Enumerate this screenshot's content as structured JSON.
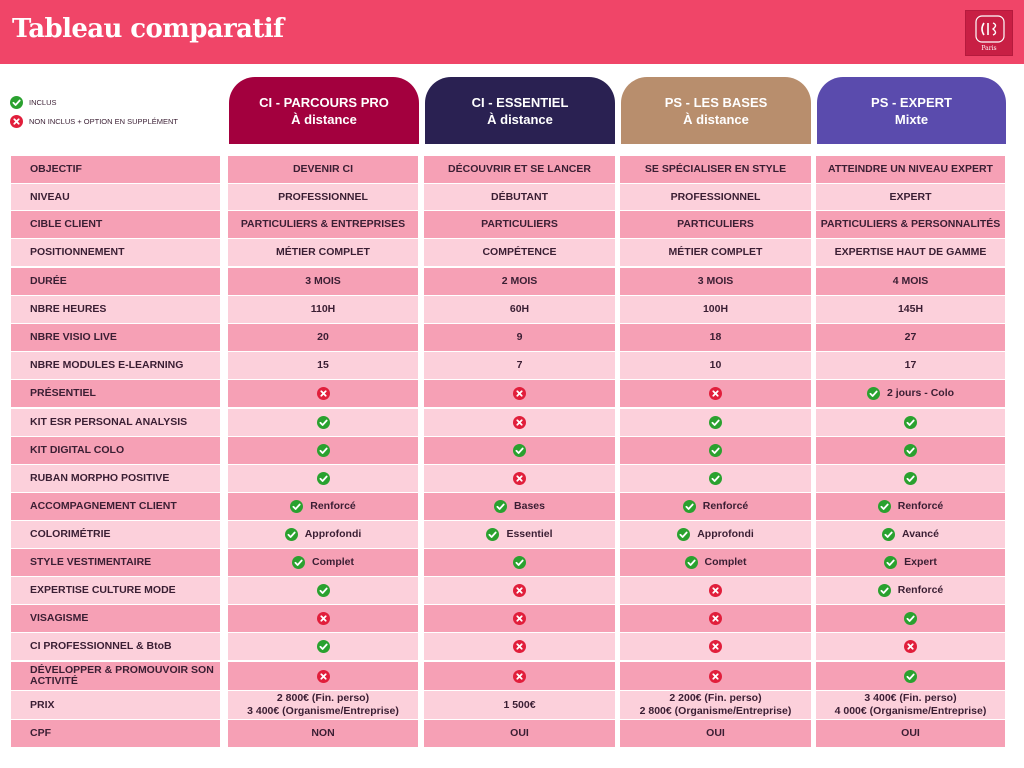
{
  "header": {
    "title": "Tableau comparatif",
    "logo_text": "Paris"
  },
  "legend": {
    "included": "INCLUS",
    "not_included": "NON INCLUS + OPTION EN SUPPLÉMENT"
  },
  "colors": {
    "header_bg": "#f04568",
    "row_dark": "#f6a0b5",
    "row_light": "#fcd0db",
    "yes": "#2aa12f",
    "no": "#e11e3b"
  },
  "columns": [
    {
      "title": "CI - PARCOURS PRO",
      "subtitle": "À distance",
      "color": "#a3003e"
    },
    {
      "title": "CI - ESSENTIEL",
      "subtitle": "À distance",
      "color": "#2a2152"
    },
    {
      "title": "PS - LES BASES",
      "subtitle": "À distance",
      "color": "#b88e6d"
    },
    {
      "title": "PS - EXPERT",
      "subtitle": "Mixte",
      "color": "#5a4bad"
    }
  ],
  "rows": [
    {
      "label": "OBJECTIF",
      "cells": [
        {
          "text": "DEVENIR CI"
        },
        {
          "text": "DÉCOUVRIR ET SE LANCER"
        },
        {
          "text": "SE SPÉCIALISER EN STYLE"
        },
        {
          "text": "ATTEINDRE UN NIVEAU EXPERT"
        }
      ]
    },
    {
      "label": "NIVEAU",
      "cells": [
        {
          "text": "PROFESSIONNEL"
        },
        {
          "text": "DÉBUTANT"
        },
        {
          "text": "PROFESSIONNEL"
        },
        {
          "text": "EXPERT"
        }
      ]
    },
    {
      "label": "CIBLE CLIENT",
      "cells": [
        {
          "text": "PARTICULIERS & ENTREPRISES"
        },
        {
          "text": "PARTICULIERS"
        },
        {
          "text": "PARTICULIERS"
        },
        {
          "text": "PARTICULIERS & PERSONNALITÉS"
        }
      ]
    },
    {
      "label": "POSITIONNEMENT",
      "cells": [
        {
          "text": "MÉTIER COMPLET"
        },
        {
          "text": "COMPÉTENCE"
        },
        {
          "text": "MÉTIER COMPLET"
        },
        {
          "text": "EXPERTISE HAUT DE GAMME"
        }
      ]
    },
    {
      "label": "DURÉE",
      "cells": [
        {
          "text": "3 MOIS"
        },
        {
          "text": "2 MOIS"
        },
        {
          "text": "3 MOIS"
        },
        {
          "text": "4 MOIS"
        }
      ]
    },
    {
      "label": "NBRE HEURES",
      "cells": [
        {
          "text": "110H"
        },
        {
          "text": "60H"
        },
        {
          "text": "100H"
        },
        {
          "text": "145H"
        }
      ]
    },
    {
      "label": "NBRE VISIO LIVE",
      "cells": [
        {
          "text": "20"
        },
        {
          "text": "9"
        },
        {
          "text": "18"
        },
        {
          "text": "27"
        }
      ]
    },
    {
      "label": "NBRE MODULES E-LEARNING",
      "cells": [
        {
          "text": "15"
        },
        {
          "text": "7"
        },
        {
          "text": "10"
        },
        {
          "text": "17"
        }
      ]
    },
    {
      "label": "PRÉSENTIEL",
      "cells": [
        {
          "icon": "no"
        },
        {
          "icon": "no"
        },
        {
          "icon": "no"
        },
        {
          "icon": "yes",
          "text": "2 jours - Colo"
        }
      ]
    },
    {
      "label": "KIT ESR PERSONAL ANALYSIS",
      "cells": [
        {
          "icon": "yes"
        },
        {
          "icon": "no"
        },
        {
          "icon": "yes"
        },
        {
          "icon": "yes"
        }
      ]
    },
    {
      "label": "KIT DIGITAL COLO",
      "cells": [
        {
          "icon": "yes"
        },
        {
          "icon": "yes"
        },
        {
          "icon": "yes"
        },
        {
          "icon": "yes"
        }
      ]
    },
    {
      "label": "RUBAN MORPHO POSITIVE",
      "cells": [
        {
          "icon": "yes"
        },
        {
          "icon": "no"
        },
        {
          "icon": "yes"
        },
        {
          "icon": "yes"
        }
      ]
    },
    {
      "label": "ACCOMPAGNEMENT CLIENT",
      "cells": [
        {
          "icon": "yes",
          "text": "Renforcé"
        },
        {
          "icon": "yes",
          "text": "Bases"
        },
        {
          "icon": "yes",
          "text": "Renforcé"
        },
        {
          "icon": "yes",
          "text": "Renforcé"
        }
      ]
    },
    {
      "label": "COLORIMÉTRIE",
      "cells": [
        {
          "icon": "yes",
          "text": "Approfondi"
        },
        {
          "icon": "yes",
          "text": "Essentiel"
        },
        {
          "icon": "yes",
          "text": "Approfondi"
        },
        {
          "icon": "yes",
          "text": "Avancé"
        }
      ]
    },
    {
      "label": "STYLE VESTIMENTAIRE",
      "cells": [
        {
          "icon": "yes",
          "text": "Complet"
        },
        {
          "icon": "yes"
        },
        {
          "icon": "yes",
          "text": "Complet"
        },
        {
          "icon": "yes",
          "text": "Expert"
        }
      ]
    },
    {
      "label": "EXPERTISE CULTURE MODE",
      "cells": [
        {
          "icon": "yes"
        },
        {
          "icon": "no"
        },
        {
          "icon": "no"
        },
        {
          "icon": "yes",
          "text": "Renforcé"
        }
      ]
    },
    {
      "label": "VISAGISME",
      "cells": [
        {
          "icon": "no"
        },
        {
          "icon": "no"
        },
        {
          "icon": "no"
        },
        {
          "icon": "yes"
        }
      ]
    },
    {
      "label": "CI PROFESSIONNEL & BtoB",
      "cells": [
        {
          "icon": "yes"
        },
        {
          "icon": "no"
        },
        {
          "icon": "no"
        },
        {
          "icon": "no"
        }
      ]
    },
    {
      "label": "DÉVELOPPER & PROMOUVOIR SON ACTIVITÉ",
      "cells": [
        {
          "icon": "no"
        },
        {
          "icon": "no"
        },
        {
          "icon": "no"
        },
        {
          "icon": "yes"
        }
      ]
    },
    {
      "label": "PRIX",
      "cells": [
        {
          "text": "2 800€ (Fin. perso)",
          "text2": "3 400€ (Organisme/Entreprise)"
        },
        {
          "text": "1 500€"
        },
        {
          "text": "2 200€ (Fin. perso)",
          "text2": "2 800€ (Organisme/Entreprise)"
        },
        {
          "text": "3 400€ (Fin. perso)",
          "text2": "4 000€ (Organisme/Entreprise)"
        }
      ]
    },
    {
      "label": "CPF",
      "cells": [
        {
          "text": "NON"
        },
        {
          "text": "OUI"
        },
        {
          "text": "OUI"
        },
        {
          "text": "OUI"
        }
      ]
    }
  ]
}
